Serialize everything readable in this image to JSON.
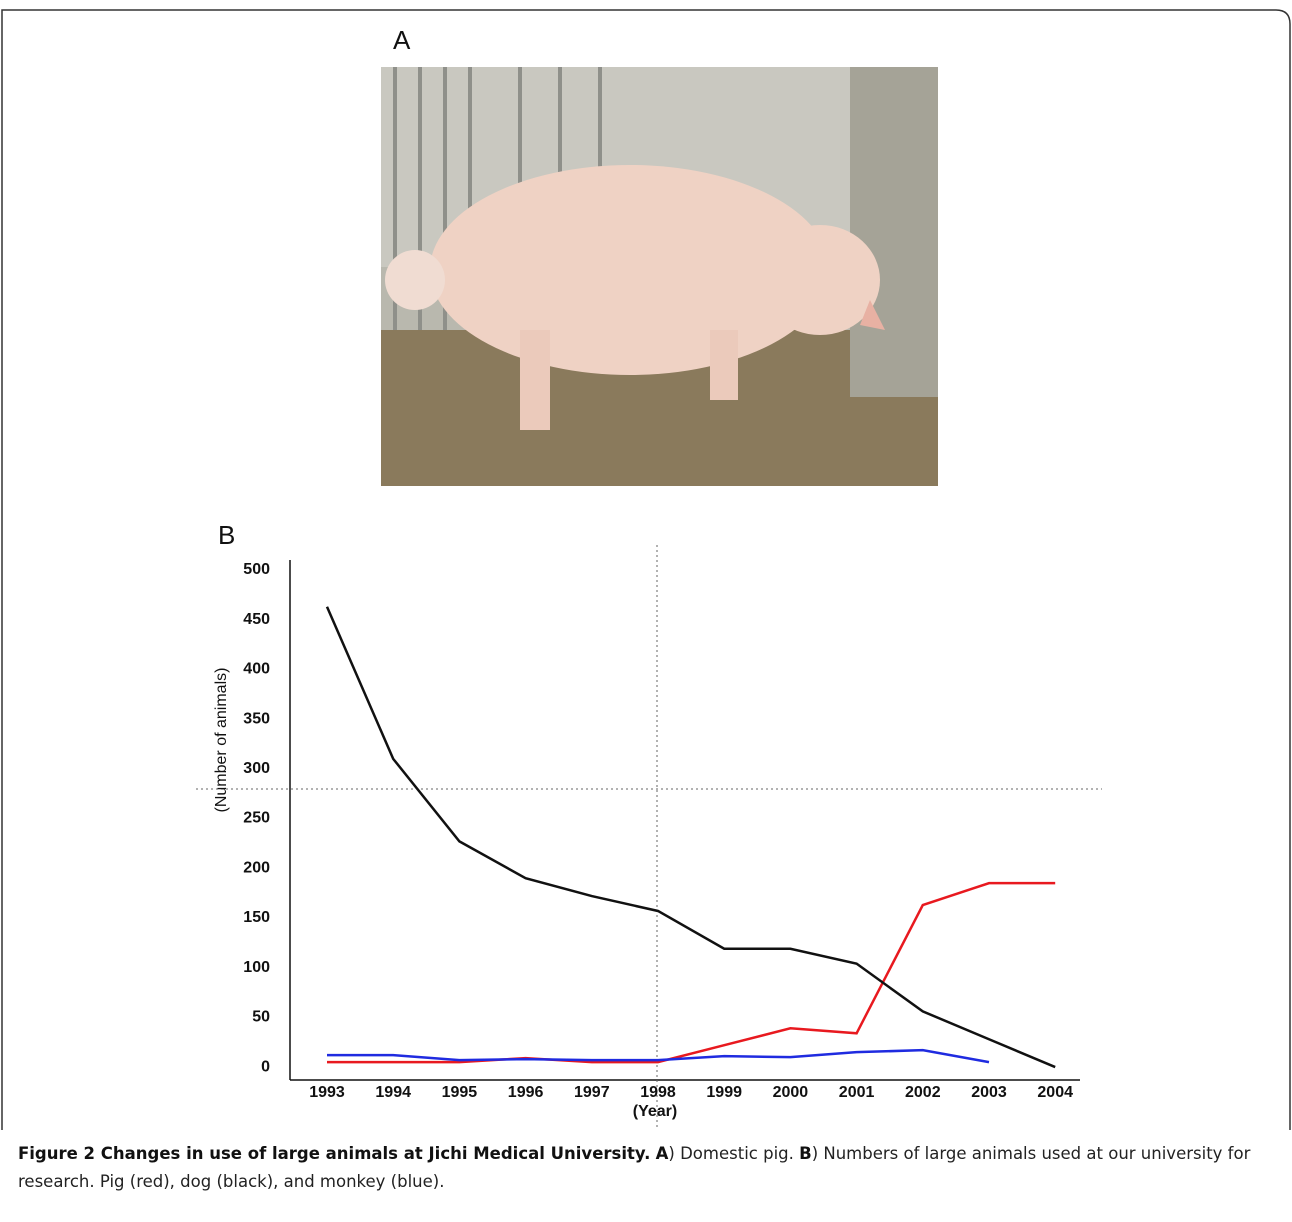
{
  "panel_a": {
    "label": "A"
  },
  "chart_data": {
    "type": "line",
    "panel_label": "B",
    "y_label": "(Number of animals)",
    "x_label": "(Year)",
    "categories": [
      "1993",
      "1994",
      "1995",
      "1996",
      "1997",
      "1998",
      "1999",
      "2000",
      "2001",
      "2002",
      "2003",
      "2004"
    ],
    "series": [
      {
        "color": "#e8191f",
        "values": [
          5,
          5,
          5,
          9,
          5,
          5,
          22,
          39,
          34,
          163,
          185,
          185
        ]
      },
      {
        "color": "#111111",
        "values": [
          463,
          310,
          227,
          190,
          172,
          157,
          119,
          119,
          104,
          56,
          28,
          0
        ]
      },
      {
        "color": "#1f2be0",
        "values": [
          12,
          12,
          7,
          8,
          7,
          7,
          11,
          10,
          15,
          17,
          5,
          null
        ]
      }
    ],
    "ylim": [
      -13,
      510
    ],
    "yticks": [
      0,
      50,
      100,
      150,
      200,
      250,
      300,
      350,
      400,
      450,
      500
    ],
    "grid": false
  },
  "caption": {
    "title": "Figure 2 Changes in use of large animals at Jichi Medical University.",
    "a_label": "A",
    "a_text": ") Domestic pig.",
    "b_label": "B",
    "b_text": ") Numbers of large animals used at our university for research. Pig (red), dog (black), and monkey (blue)."
  }
}
